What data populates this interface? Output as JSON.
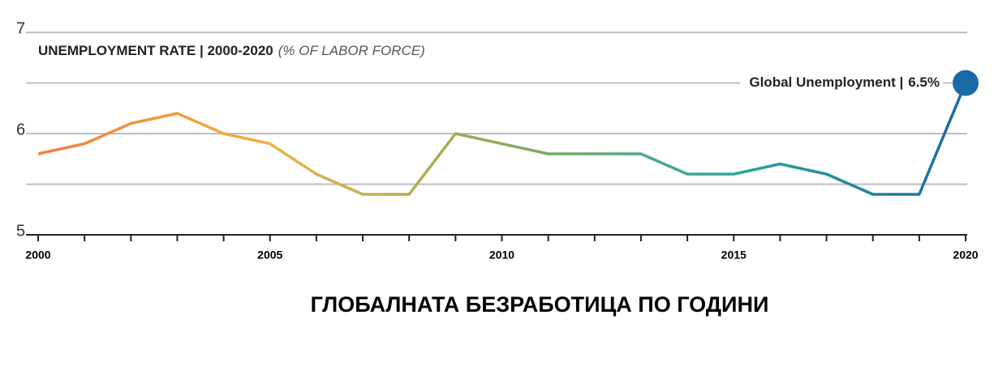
{
  "chart_data": {
    "type": "line",
    "title": "UNEMPLOYMENT RATE | 2000-2020",
    "subtitle": "(% OF LABOR FORCE)",
    "caption": "ГЛОБАЛНАТА БЕЗРАБОТИЦА ПО ГОДИНИ",
    "annotation": "Global Unemployment |",
    "end_label": "6.5%",
    "x": [
      2000,
      2001,
      2002,
      2003,
      2004,
      2005,
      2006,
      2007,
      2008,
      2009,
      2010,
      2011,
      2012,
      2013,
      2014,
      2015,
      2016,
      2017,
      2018,
      2019,
      2020
    ],
    "series": [
      {
        "name": "Global Unemployment",
        "color": "#1a6aa6",
        "values": [
          5.8,
          5.9,
          6.1,
          6.2,
          6.0,
          5.9,
          5.6,
          5.4,
          5.4,
          6.0,
          5.9,
          5.8,
          5.8,
          5.8,
          5.6,
          5.6,
          5.7,
          5.6,
          5.4,
          5.4,
          6.5
        ]
      }
    ],
    "gradient": [
      "#f07f3c",
      "#f0b048",
      "#8fa95a",
      "#2aa79b",
      "#1a6aa6"
    ],
    "xlim": [
      2000,
      2020
    ],
    "xticks": [
      2000,
      2005,
      2010,
      2015,
      2020
    ],
    "xminor": [
      2001,
      2002,
      2003,
      2004,
      2006,
      2007,
      2008,
      2009,
      2011,
      2012,
      2013,
      2014,
      2016,
      2017,
      2018,
      2019
    ],
    "ylim": [
      5,
      7
    ],
    "yticks": [
      5,
      6,
      7
    ],
    "yminor": [
      5.5,
      6.5
    ],
    "grid": true
  }
}
